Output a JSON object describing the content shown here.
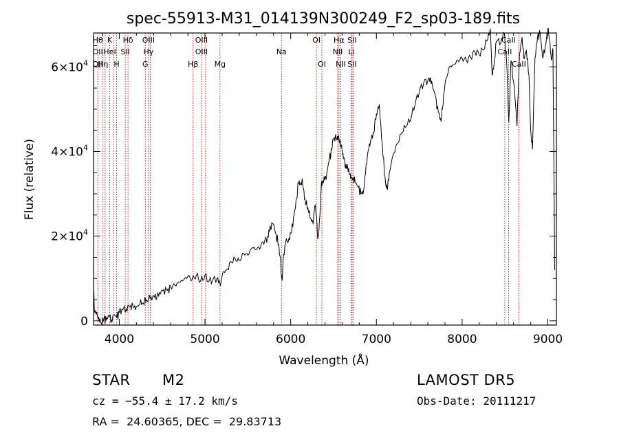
{
  "chart_data": {
    "type": "line",
    "title": "spec-55913-M31_014139N300249_F2_sp03-189.fits",
    "xlabel": "Wavelength (Å)",
    "ylabel": "Flux (relative)",
    "xlim": [
      3700,
      9100
    ],
    "ylim": [
      -1000,
      68000
    ],
    "xticks": [
      4000,
      5000,
      6000,
      7000,
      8000,
      9000
    ],
    "xtick_labels": [
      "4000",
      "5000",
      "6000",
      "7000",
      "8000",
      "9000"
    ],
    "yticks": [
      0,
      20000,
      40000,
      60000
    ],
    "ytick_labels": [
      {
        "base": "0",
        "exp": ""
      },
      {
        "base": "2×10",
        "exp": "4"
      },
      {
        "base": "4×10",
        "exp": "4"
      },
      {
        "base": "6×10",
        "exp": "4"
      }
    ],
    "line_color": "#000000",
    "marker_color": "#cc0000",
    "series": [
      {
        "points": [
          [
            3700,
            8000
          ],
          [
            3710,
            2500
          ],
          [
            3730,
            1500
          ],
          [
            3760,
            800
          ],
          [
            3790,
            -500
          ],
          [
            3820,
            500
          ],
          [
            3850,
            200
          ],
          [
            3880,
            1200
          ],
          [
            3910,
            300
          ],
          [
            3940,
            1500
          ],
          [
            3970,
            700
          ],
          [
            4000,
            2000
          ],
          [
            4040,
            2600
          ],
          [
            4080,
            2800
          ],
          [
            4120,
            3300
          ],
          [
            4160,
            3500
          ],
          [
            4200,
            3400
          ],
          [
            4240,
            3900
          ],
          [
            4280,
            4200
          ],
          [
            4320,
            5000
          ],
          [
            4360,
            5200
          ],
          [
            4400,
            6000
          ],
          [
            4440,
            5800
          ],
          [
            4480,
            6400
          ],
          [
            4520,
            7400
          ],
          [
            4560,
            7200
          ],
          [
            4600,
            8000
          ],
          [
            4650,
            8400
          ],
          [
            4700,
            9100
          ],
          [
            4750,
            9600
          ],
          [
            4800,
            10500
          ],
          [
            4850,
            9800
          ],
          [
            4900,
            10800
          ],
          [
            4950,
            9500
          ],
          [
            5000,
            10800
          ],
          [
            5050,
            9500
          ],
          [
            5100,
            10100
          ],
          [
            5150,
            10200
          ],
          [
            5180,
            8400
          ],
          [
            5210,
            11500
          ],
          [
            5250,
            12000
          ],
          [
            5300,
            14000
          ],
          [
            5350,
            14800
          ],
          [
            5400,
            14200
          ],
          [
            5450,
            16000
          ],
          [
            5500,
            15500
          ],
          [
            5550,
            17300
          ],
          [
            5600,
            16800
          ],
          [
            5650,
            17500
          ],
          [
            5700,
            19200
          ],
          [
            5740,
            19800
          ],
          [
            5760,
            22500
          ],
          [
            5800,
            22800
          ],
          [
            5830,
            20300
          ],
          [
            5860,
            18000
          ],
          [
            5880,
            15000
          ],
          [
            5895,
            10000
          ],
          [
            5900,
            9500
          ],
          [
            5910,
            14000
          ],
          [
            5940,
            18500
          ],
          [
            5980,
            19500
          ],
          [
            6010,
            21000
          ],
          [
            6040,
            25000
          ],
          [
            6070,
            29000
          ],
          [
            6090,
            32500
          ],
          [
            6110,
            32200
          ],
          [
            6130,
            33000
          ],
          [
            6150,
            31200
          ],
          [
            6170,
            28500
          ],
          [
            6190,
            27000
          ],
          [
            6210,
            25500
          ],
          [
            6240,
            24000
          ],
          [
            6260,
            23000
          ],
          [
            6280,
            27000
          ],
          [
            6300,
            25000
          ],
          [
            6310,
            21000
          ],
          [
            6320,
            19500
          ],
          [
            6340,
            24500
          ],
          [
            6360,
            33000
          ],
          [
            6380,
            32500
          ],
          [
            6400,
            33500
          ],
          [
            6420,
            34800
          ],
          [
            6450,
            38000
          ],
          [
            6480,
            40500
          ],
          [
            6500,
            43000
          ],
          [
            6520,
            43500
          ],
          [
            6540,
            42800
          ],
          [
            6560,
            43800
          ],
          [
            6580,
            41500
          ],
          [
            6600,
            40200
          ],
          [
            6620,
            38500
          ],
          [
            6640,
            36000
          ],
          [
            6660,
            37000
          ],
          [
            6680,
            35200
          ],
          [
            6700,
            33500
          ],
          [
            6730,
            34000
          ],
          [
            6760,
            32500
          ],
          [
            6790,
            31500
          ],
          [
            6820,
            30000
          ],
          [
            6850,
            30500
          ],
          [
            6880,
            37000
          ],
          [
            6910,
            40500
          ],
          [
            6940,
            43000
          ],
          [
            6970,
            44500
          ],
          [
            6990,
            47500
          ],
          [
            7010,
            49500
          ],
          [
            7030,
            50800
          ],
          [
            7050,
            47000
          ],
          [
            7070,
            41000
          ],
          [
            7090,
            36000
          ],
          [
            7110,
            32000
          ],
          [
            7130,
            31000
          ],
          [
            7150,
            35000
          ],
          [
            7200,
            39500
          ],
          [
            7250,
            42000
          ],
          [
            7300,
            44500
          ],
          [
            7350,
            46000
          ],
          [
            7400,
            47500
          ],
          [
            7450,
            51000
          ],
          [
            7500,
            54000
          ],
          [
            7550,
            56000
          ],
          [
            7600,
            56800
          ],
          [
            7630,
            57500
          ],
          [
            7660,
            55000
          ],
          [
            7690,
            53000
          ],
          [
            7710,
            50500
          ],
          [
            7730,
            49000
          ],
          [
            7750,
            47500
          ],
          [
            7770,
            50000
          ],
          [
            7800,
            56000
          ],
          [
            7850,
            60000
          ],
          [
            7900,
            60500
          ],
          [
            7950,
            61500
          ],
          [
            8000,
            62000
          ],
          [
            8050,
            61500
          ],
          [
            8100,
            62200
          ],
          [
            8150,
            63500
          ],
          [
            8200,
            62800
          ],
          [
            8250,
            64000
          ],
          [
            8300,
            66500
          ],
          [
            8330,
            69000
          ],
          [
            8350,
            58000
          ],
          [
            8370,
            60000
          ],
          [
            8400,
            66000
          ],
          [
            8450,
            65500
          ],
          [
            8490,
            68000
          ],
          [
            8520,
            61000
          ],
          [
            8545,
            47000
          ],
          [
            8570,
            61500
          ],
          [
            8610,
            55000
          ],
          [
            8640,
            46000
          ],
          [
            8670,
            63000
          ],
          [
            8700,
            67000
          ],
          [
            8720,
            62000
          ],
          [
            8750,
            64000
          ],
          [
            8780,
            58000
          ],
          [
            8800,
            45000
          ],
          [
            8820,
            40500
          ],
          [
            8850,
            62000
          ],
          [
            8880,
            67000
          ],
          [
            8910,
            68000
          ],
          [
            8940,
            62000
          ],
          [
            8970,
            65000
          ],
          [
            9000,
            69000
          ],
          [
            9020,
            66500
          ],
          [
            9040,
            62000
          ],
          [
            9060,
            64000
          ],
          [
            9070,
            38000
          ],
          [
            9080,
            12000
          ]
        ]
      }
    ],
    "line_markers": [
      {
        "w": 3750,
        "labels": [
          {
            "row": 1,
            "text": "Hθ"
          },
          {
            "row": 2,
            "text": "OII"
          },
          {
            "row": 3,
            "text": "OII"
          }
        ]
      },
      {
        "w": 3810,
        "labels": [
          {
            "row": 3,
            "text": "Hη"
          }
        ]
      },
      {
        "w": 3835,
        "labels": []
      },
      {
        "w": 3889,
        "labels": [
          {
            "row": 1,
            "text": "K"
          },
          {
            "row": 2,
            "text": "HeI"
          }
        ]
      },
      {
        "w": 3934,
        "labels": []
      },
      {
        "w": 3969,
        "labels": [
          {
            "row": 3,
            "text": "H"
          }
        ]
      },
      {
        "w": 4070,
        "labels": [
          {
            "row": 2,
            "text": "SII"
          }
        ]
      },
      {
        "w": 4102,
        "labels": [
          {
            "row": 1,
            "text": "Hδ"
          }
        ]
      },
      {
        "w": 4304,
        "labels": [
          {
            "row": 3,
            "text": "G"
          }
        ]
      },
      {
        "w": 4341,
        "labels": [
          {
            "row": 1,
            "text": "OIII"
          },
          {
            "row": 2,
            "text": "Hγ"
          }
        ]
      },
      {
        "w": 4363,
        "labels": []
      },
      {
        "w": 4861,
        "labels": [
          {
            "row": 3,
            "text": "Hβ"
          }
        ]
      },
      {
        "w": 4959,
        "labels": [
          {
            "row": 1,
            "text": "OIII"
          },
          {
            "row": 2,
            "text": "OIII"
          }
        ]
      },
      {
        "w": 5007,
        "labels": []
      },
      {
        "w": 5175,
        "labels": [
          {
            "row": 3,
            "text": "Mg"
          }
        ]
      },
      {
        "w": 5893,
        "labels": [
          {
            "row": 2,
            "text": "Na"
          }
        ]
      },
      {
        "w": 6300,
        "labels": [
          {
            "row": 1,
            "text": "OI"
          }
        ]
      },
      {
        "w": 6364,
        "labels": [
          {
            "row": 3,
            "text": "OI"
          }
        ]
      },
      {
        "w": 6548,
        "labels": [
          {
            "row": 2,
            "text": "NII"
          }
        ]
      },
      {
        "w": 6563,
        "labels": [
          {
            "row": 1,
            "text": "Hα"
          }
        ]
      },
      {
        "w": 6584,
        "labels": [
          {
            "row": 3,
            "text": "NII"
          }
        ]
      },
      {
        "w": 6708,
        "labels": [
          {
            "row": 2,
            "text": "Li"
          }
        ]
      },
      {
        "w": 6717,
        "labels": [
          {
            "row": 1,
            "text": "SII"
          },
          {
            "row": 3,
            "text": "SII"
          }
        ]
      },
      {
        "w": 6731,
        "labels": []
      },
      {
        "w": 8498,
        "labels": [
          {
            "row": 2,
            "text": "CaII"
          }
        ]
      },
      {
        "w": 8542,
        "labels": [
          {
            "row": 1,
            "text": "CaII"
          }
        ]
      },
      {
        "w": 8662,
        "labels": [
          {
            "row": 3,
            "text": "CaII"
          }
        ]
      }
    ]
  },
  "info": {
    "object_class": "STAR",
    "subclass": "M2",
    "survey": "LAMOST DR5",
    "cz_text": "cz = −55.4 ± 17.2 km/s",
    "obs_date": "Obs-Date: 20111217",
    "ra_dec": "RA =  24.60365, DEC =  29.83713"
  }
}
